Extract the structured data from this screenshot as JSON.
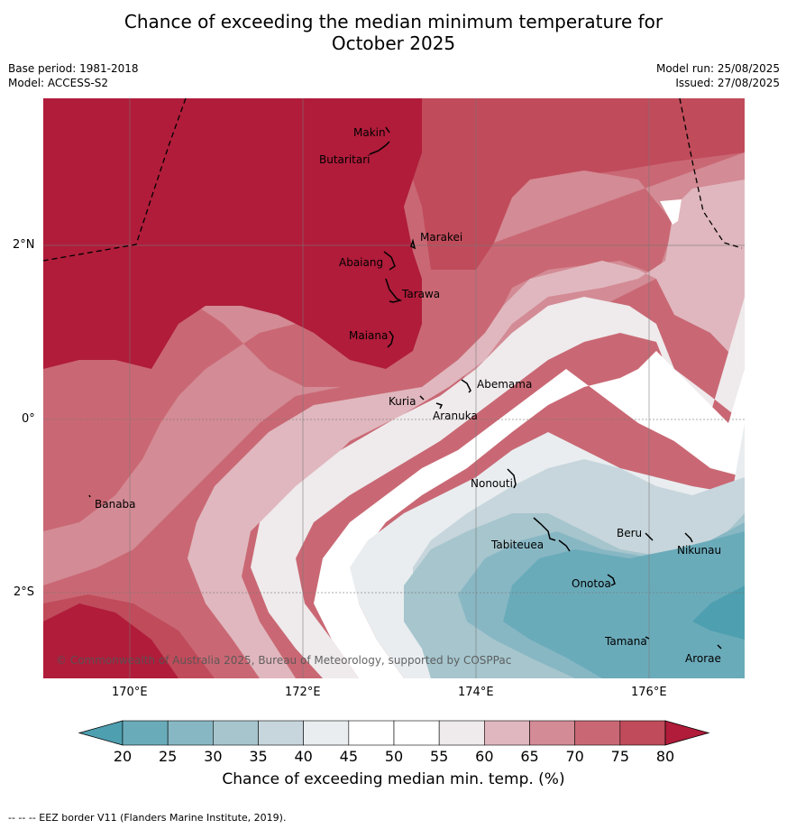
{
  "title_line1": "Chance of exceeding the median minimum temperature for",
  "title_line2": "October 2025",
  "base_period": "Base period: 1981-2018",
  "model": "Model: ACCESS-S2",
  "model_run": "Model run: 25/08/2025",
  "issued": "Issued: 27/08/2025",
  "copyright": "© Commonwealth of Australia 2025, Bureau of Meteorology, supported by COSPPac",
  "lon_ticks": [
    "170°E",
    "172°E",
    "174°E",
    "176°E"
  ],
  "lat_ticks": [
    "2°N",
    "0°",
    "2°S"
  ],
  "places": [
    {
      "name": "Makin",
      "lon": 173.0,
      "lat": 3.3
    },
    {
      "name": "Butaritari",
      "lon": 172.8,
      "lat": 3.05
    },
    {
      "name": "Marakei",
      "lon": 173.3,
      "lat": 2.0
    },
    {
      "name": "Abaiang",
      "lon": 172.95,
      "lat": 1.8
    },
    {
      "name": "Tarawa",
      "lon": 173.0,
      "lat": 1.4
    },
    {
      "name": "Maiana",
      "lon": 173.0,
      "lat": 0.9
    },
    {
      "name": "Abemama",
      "lon": 173.9,
      "lat": 0.4
    },
    {
      "name": "Kuria",
      "lon": 173.4,
      "lat": 0.23
    },
    {
      "name": "Aranuka",
      "lon": 173.6,
      "lat": 0.15
    },
    {
      "name": "Nonouti",
      "lon": 174.4,
      "lat": -0.65
    },
    {
      "name": "Banaba",
      "lon": 169.55,
      "lat": -0.87
    },
    {
      "name": "Tabiteuea",
      "lon": 174.8,
      "lat": -1.35
    },
    {
      "name": "Beru",
      "lon": 176.0,
      "lat": -1.35
    },
    {
      "name": "Nikunau",
      "lon": 176.45,
      "lat": -1.35
    },
    {
      "name": "Onotoa",
      "lon": 175.55,
      "lat": -1.85
    },
    {
      "name": "Tamana",
      "lon": 175.97,
      "lat": -2.5
    },
    {
      "name": "Arorae",
      "lon": 176.82,
      "lat": -2.65
    }
  ],
  "colorbar": {
    "title": "Chance of exceeding median min. temp. (%)",
    "ticks": [
      "20",
      "25",
      "30",
      "35",
      "40",
      "45",
      "50",
      "55",
      "60",
      "65",
      "70",
      "75",
      "80"
    ],
    "colors": [
      "#6aabba",
      "#88b7c4",
      "#a6c5cd",
      "#c7d6dc",
      "#e9edf0",
      "#ffffff",
      "#ffffff",
      "#efeaec",
      "#e0b7be",
      "#d38b95",
      "#c96874",
      "#c04b5a"
    ],
    "under_color": "#4e9fb0",
    "over_color": "#b01c3a"
  },
  "footer": "--  --  -- EEZ border V11 (Flanders Marine Institute, 2019)."
}
